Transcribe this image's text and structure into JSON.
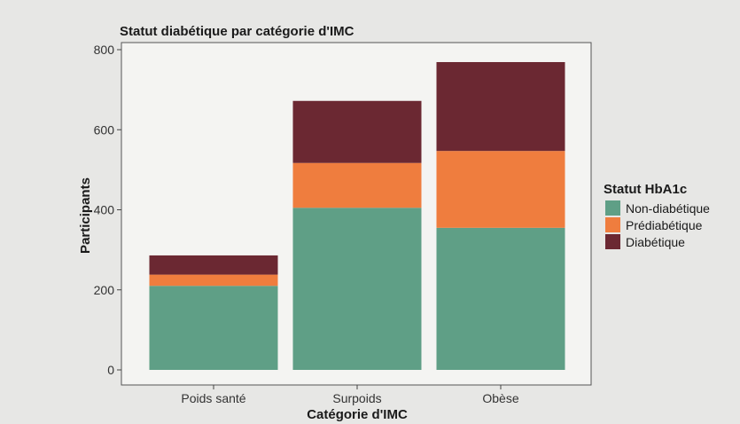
{
  "chart_data": {
    "type": "bar",
    "stacked": true,
    "title": "Statut diabétique par catégorie d'IMC",
    "xlabel": "Catégorie d'IMC",
    "ylabel": "Participants",
    "categories": [
      "Poids santé",
      "Surpoids",
      "Obèse"
    ],
    "ylim": [
      0,
      800
    ],
    "yticks": [
      0,
      200,
      400,
      600,
      800
    ],
    "grid": false,
    "legend": {
      "title": "Statut HbA1c",
      "position": "right"
    },
    "series": [
      {
        "name": "Non-diabétique",
        "values": [
          210,
          405,
          355
        ],
        "color": "#5f9f86"
      },
      {
        "name": "Prédiabétique",
        "values": [
          28,
          112,
          192
        ],
        "color": "#ef7d3e"
      },
      {
        "name": "Diabétique",
        "values": [
          48,
          155,
          222
        ],
        "color": "#6b2832"
      }
    ]
  }
}
